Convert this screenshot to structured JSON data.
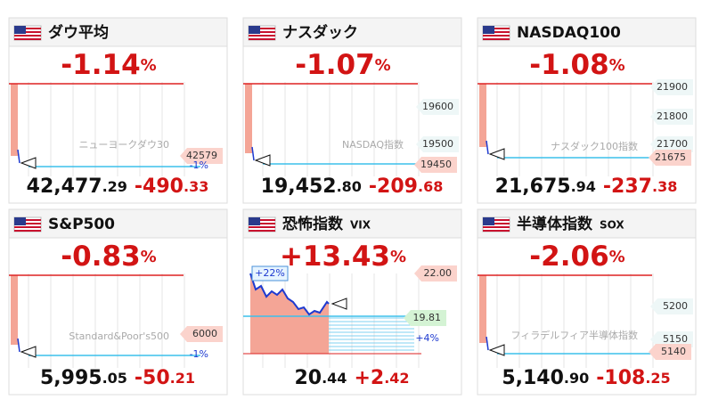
{
  "unit": "%",
  "panels": [
    {
      "name": "ダウ平均",
      "pct": "-1.14",
      "value_int": "42,477",
      "value_dec": ".29",
      "change_int": "-490",
      "change_dec": ".33",
      "watermark": "ニューヨークダウ30",
      "labels": [
        "42579",
        "-1%"
      ]
    },
    {
      "name": "ナスダック",
      "pct": "-1.07",
      "value_int": "19,452",
      "value_dec": ".80",
      "change_int": "-209",
      "change_dec": ".68",
      "watermark": "NASDAQ指数",
      "labels": [
        "19600",
        "19500",
        "19450"
      ]
    },
    {
      "name": "NASDAQ100",
      "pct": "-1.08",
      "value_int": "21,675",
      "value_dec": ".94",
      "change_int": "-237",
      "change_dec": ".38",
      "watermark": "ナスダック100指数",
      "labels": [
        "21900",
        "21800",
        "21700",
        "21675"
      ]
    },
    {
      "name": "S&P500",
      "pct": "-0.83",
      "value_int": "5,995",
      "value_dec": ".05",
      "change_int": "-50",
      "change_dec": ".21",
      "watermark": "Standard&Poor's500",
      "labels": [
        "6000",
        "-1%"
      ]
    },
    {
      "name": "恐怖指数",
      "sub": "VIX",
      "pct": "+13.43",
      "value_int": "20",
      "value_dec": ".44",
      "change_int": "+2",
      "change_dec": ".42",
      "labels": [
        "+22%",
        "22.00",
        "19.81",
        "+4%"
      ]
    },
    {
      "name": "半導体指数",
      "sub": "SOX",
      "pct": "-2.06",
      "value_int": "5,140",
      "value_dec": ".90",
      "change_int": "-108",
      "change_dec": ".25",
      "watermark": "フィラデルフィア半導体指数",
      "labels": [
        "5200",
        "5150",
        "5140"
      ]
    }
  ]
}
